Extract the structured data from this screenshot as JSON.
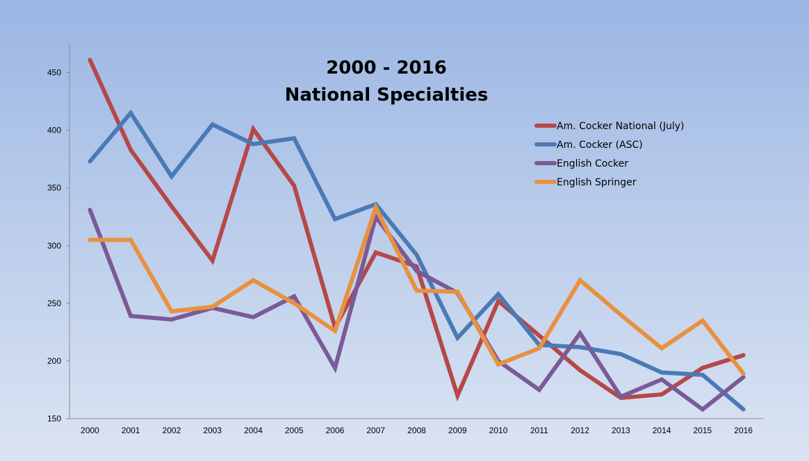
{
  "chart_data": {
    "type": "line",
    "title_lines": [
      "2000 - 2016",
      "National Specialties"
    ],
    "xlabel": "",
    "ylabel": "",
    "x": [
      "2000",
      "2001",
      "2002",
      "2003",
      "2004",
      "2005",
      "2006",
      "2007",
      "2008",
      "2009",
      "2010",
      "2011",
      "2012",
      "2013",
      "2014",
      "2015",
      "2016"
    ],
    "y_ticks": [
      150,
      200,
      250,
      300,
      350,
      400,
      450
    ],
    "ylim": [
      150,
      475
    ],
    "grid": false,
    "legend_position": "top-right",
    "series": [
      {
        "name": "Am. Cocker National (July)",
        "color": "#b54848",
        "values": [
          461,
          383,
          334,
          287,
          401,
          352,
          229,
          294,
          282,
          170,
          252,
          222,
          192,
          168,
          171,
          194,
          205
        ]
      },
      {
        "name": "Am. Cocker (ASC)",
        "color": "#4a7ab6",
        "values": [
          373,
          415,
          360,
          405,
          388,
          393,
          323,
          336,
          292,
          220,
          258,
          214,
          212,
          206,
          190,
          188,
          158
        ]
      },
      {
        "name": "English Cocker",
        "color": "#7a5a98",
        "values": [
          331,
          239,
          236,
          246,
          238,
          256,
          194,
          325,
          278,
          259,
          200,
          175,
          224,
          169,
          184,
          158,
          186
        ]
      },
      {
        "name": "English Springer",
        "color": "#e8913f",
        "values": [
          305,
          305,
          243,
          247,
          270,
          250,
          226,
          333,
          261,
          260,
          197,
          211,
          270,
          240,
          211,
          235,
          189
        ]
      }
    ]
  }
}
